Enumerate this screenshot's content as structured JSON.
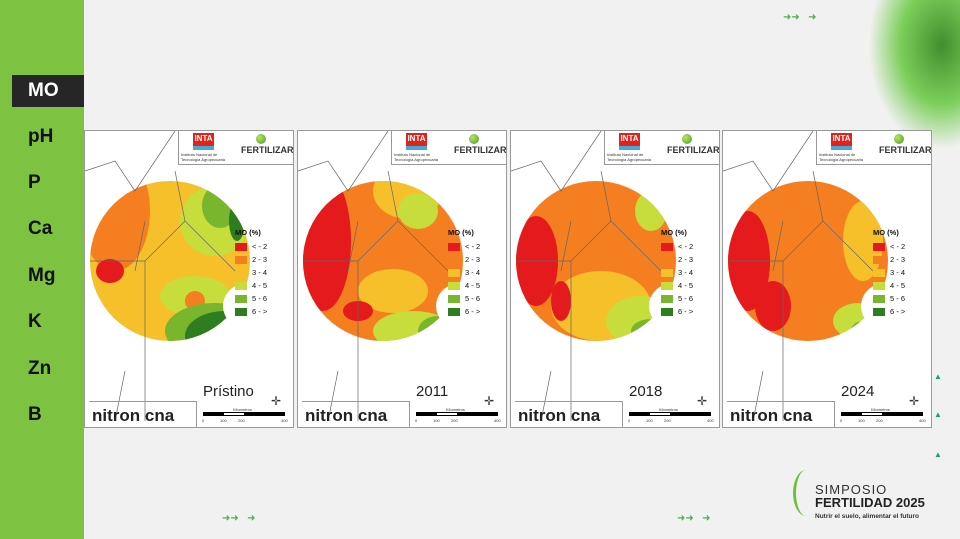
{
  "sidebar": {
    "items": [
      {
        "label": "MO",
        "active": true
      },
      {
        "label": "pH"
      },
      {
        "label": "P"
      },
      {
        "label": "Ca"
      },
      {
        "label": "Mg"
      },
      {
        "label": "K"
      },
      {
        "label": "Zn"
      },
      {
        "label": "B"
      }
    ]
  },
  "logos": {
    "inta": "INTA",
    "inta_sub": "Instituto Nacional de Tecnología Agropecuaria",
    "fertilizar": "FERTILIZAR",
    "brand": "nitron cna"
  },
  "legend": {
    "title": "MO (%)",
    "classes": [
      {
        "label": "< - 2",
        "color": "#e41a1c"
      },
      {
        "label": "2 - 3",
        "color": "#f57f20"
      },
      {
        "label": "3 - 4",
        "color": "#f5c02a"
      },
      {
        "label": "4 - 5",
        "color": "#c6dd3c"
      },
      {
        "label": "5 - 6",
        "color": "#7ab52e"
      },
      {
        "label": "6 - >",
        "color": "#2e7d1e"
      }
    ]
  },
  "scale": {
    "label": "Kilometros",
    "ticks": [
      "0",
      "100",
      "200",
      "400"
    ]
  },
  "maps": [
    {
      "year": "Prístino"
    },
    {
      "year": "2011"
    },
    {
      "year": "2018"
    },
    {
      "year": "2024"
    }
  ],
  "event": {
    "line1": "SIMPOSIO",
    "line2": "FERTILIDAD 2025",
    "tagline": "Nutrir el suelo, alimentar el futuro"
  }
}
